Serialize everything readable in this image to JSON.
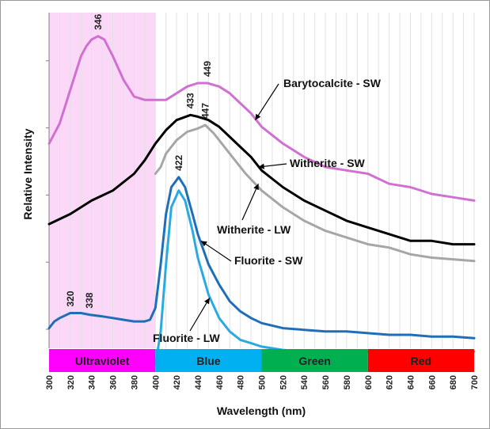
{
  "chart_data": {
    "type": "line",
    "xlabel": "Wavelength (nm)",
    "ylabel": "Relative Intensity",
    "xlim": [
      300,
      700
    ],
    "ylim": [
      0,
      100
    ],
    "x_ticks": [
      300,
      320,
      340,
      360,
      380,
      400,
      420,
      440,
      460,
      480,
      500,
      520,
      540,
      560,
      580,
      600,
      620,
      640,
      660,
      680,
      700
    ],
    "grid": {
      "vertical": true,
      "horizontal": false
    },
    "highlight": {
      "x_range": [
        300,
        400
      ],
      "color": "#fbd7f8"
    },
    "bands": [
      {
        "label": "Ultraviolet",
        "range": [
          300,
          400
        ],
        "color": "#ff00ff"
      },
      {
        "label": "Blue",
        "range": [
          400,
          500
        ],
        "color": "#00b0f0"
      },
      {
        "label": "Green",
        "range": [
          500,
          600
        ],
        "color": "#00b050"
      },
      {
        "label": "Red",
        "range": [
          600,
          700
        ],
        "color": "#ff0000"
      }
    ],
    "series": [
      {
        "name": "Barytocalcite - SW",
        "color": "#d070d0",
        "x": [
          300,
          310,
          320,
          330,
          335,
          340,
          346,
          352,
          360,
          370,
          380,
          390,
          400,
          410,
          420,
          430,
          440,
          449,
          460,
          470,
          480,
          490,
          500,
          520,
          540,
          560,
          580,
          600,
          620,
          640,
          660,
          680,
          700
        ],
        "y": [
          61,
          67,
          77,
          87,
          90,
          92,
          93,
          92,
          87,
          80,
          75,
          74,
          74,
          74,
          76,
          78,
          79,
          79,
          78,
          76,
          73,
          70,
          66,
          61,
          57,
          54,
          53,
          52,
          49,
          48,
          46,
          45,
          44
        ]
      },
      {
        "name": "Witherite - SW",
        "color": "#000000",
        "x": [
          300,
          320,
          340,
          360,
          380,
          390,
          400,
          410,
          420,
          433,
          440,
          450,
          460,
          470,
          480,
          490,
          500,
          520,
          540,
          560,
          580,
          600,
          620,
          640,
          660,
          680,
          700
        ],
        "y": [
          37,
          40,
          44,
          47,
          52,
          56,
          61,
          65,
          68,
          69.5,
          69,
          68,
          66,
          63,
          60,
          57,
          53,
          48,
          44,
          41,
          38,
          36,
          34,
          32,
          32,
          31,
          31
        ]
      },
      {
        "name": "Witherite - LW",
        "color": "#a6a6a6",
        "x": [
          400,
          405,
          410,
          420,
          430,
          440,
          447,
          455,
          465,
          475,
          485,
          500,
          520,
          540,
          560,
          580,
          600,
          620,
          640,
          660,
          680,
          700
        ],
        "y": [
          52,
          54,
          58,
          62,
          64.5,
          65.5,
          66.5,
          64,
          60,
          56,
          52,
          47,
          42,
          38,
          35,
          33,
          31,
          30,
          28,
          27,
          26.5,
          26
        ]
      },
      {
        "name": "Fluorite - SW",
        "color": "#1f6fb8",
        "x": [
          300,
          305,
          310,
          320,
          330,
          338,
          350,
          360,
          370,
          380,
          390,
          395,
          400,
          405,
          410,
          415,
          422,
          428,
          435,
          440,
          450,
          460,
          470,
          480,
          490,
          500,
          520,
          540,
          560,
          580,
          600,
          620,
          640,
          660,
          680,
          700
        ],
        "y": [
          6,
          8,
          9,
          10.5,
          10.5,
          10,
          9.5,
          9,
          8.5,
          8,
          8,
          8.5,
          12,
          25,
          40,
          48,
          51,
          48,
          40,
          34,
          25,
          19,
          14,
          11,
          9,
          7.5,
          6,
          5.5,
          5,
          5,
          4.5,
          4,
          4,
          3.5,
          3.5,
          3
        ]
      },
      {
        "name": "Fluorite - LW",
        "color": "#2aaae2",
        "x": [
          400,
          405,
          410,
          415,
          422,
          428,
          435,
          440,
          450,
          460,
          470,
          480,
          490,
          500,
          520,
          540,
          560,
          580,
          600,
          620,
          640,
          660,
          680,
          700
        ],
        "y": [
          -5,
          5,
          25,
          42,
          47,
          44,
          35,
          27,
          16,
          9,
          5,
          2.5,
          1.5,
          0.5,
          -0.5,
          -1,
          -1,
          -1,
          -1,
          -1,
          -1,
          -1,
          -1,
          -1
        ]
      }
    ],
    "peak_labels": [
      {
        "text": "346",
        "x": 346,
        "y": 93
      },
      {
        "text": "449",
        "x": 449,
        "y": 79
      },
      {
        "text": "433",
        "x": 433,
        "y": 69.5
      },
      {
        "text": "447",
        "x": 447,
        "y": 66.5
      },
      {
        "text": "422",
        "x": 422,
        "y": 51
      },
      {
        "text": "320",
        "x": 320,
        "y": 10.5
      },
      {
        "text": "338",
        "x": 338,
        "y": 10
      }
    ],
    "annotations": [
      {
        "text": "Barytocalcite - SW",
        "target_x": 494,
        "target_y": 68
      },
      {
        "text": "Witherite - SW",
        "target_x": 497,
        "target_y": 54
      },
      {
        "text": "Witherite - LW",
        "target_x": 497,
        "target_y": 49
      },
      {
        "text": "Fluorite - SW",
        "target_x": 443,
        "target_y": 32
      },
      {
        "text": "Fluorite - LW",
        "target_x": 451,
        "target_y": 15
      }
    ]
  }
}
